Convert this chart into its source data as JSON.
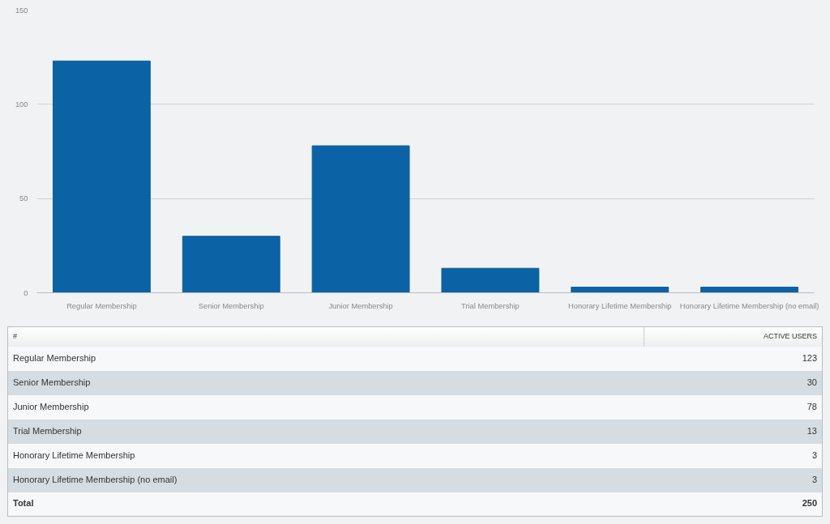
{
  "chart_data": {
    "type": "bar",
    "categories": [
      "Regular Membership",
      "Senior Membership",
      "Junior Membership",
      "Trial Membership",
      "Honorary Lifetime Membership",
      "Honorary Lifetime Membership (no email)"
    ],
    "values": [
      123,
      30,
      78,
      13,
      3,
      3
    ],
    "color": "#0b62a4",
    "ylim": [
      0,
      150
    ],
    "yticks": [
      0,
      50,
      100,
      150
    ],
    "grid": "y",
    "annotations": [
      "#",
      "ACTIVE USERS",
      "Regular Membership",
      "123",
      "Senior Membership",
      "30",
      "Junior Membership",
      "78",
      "Trial Membership",
      "13",
      "Honorary Lifetime Membership",
      "3",
      "Honorary Lifetime Membership (no email)",
      "3",
      "Total",
      "250"
    ]
  }
}
